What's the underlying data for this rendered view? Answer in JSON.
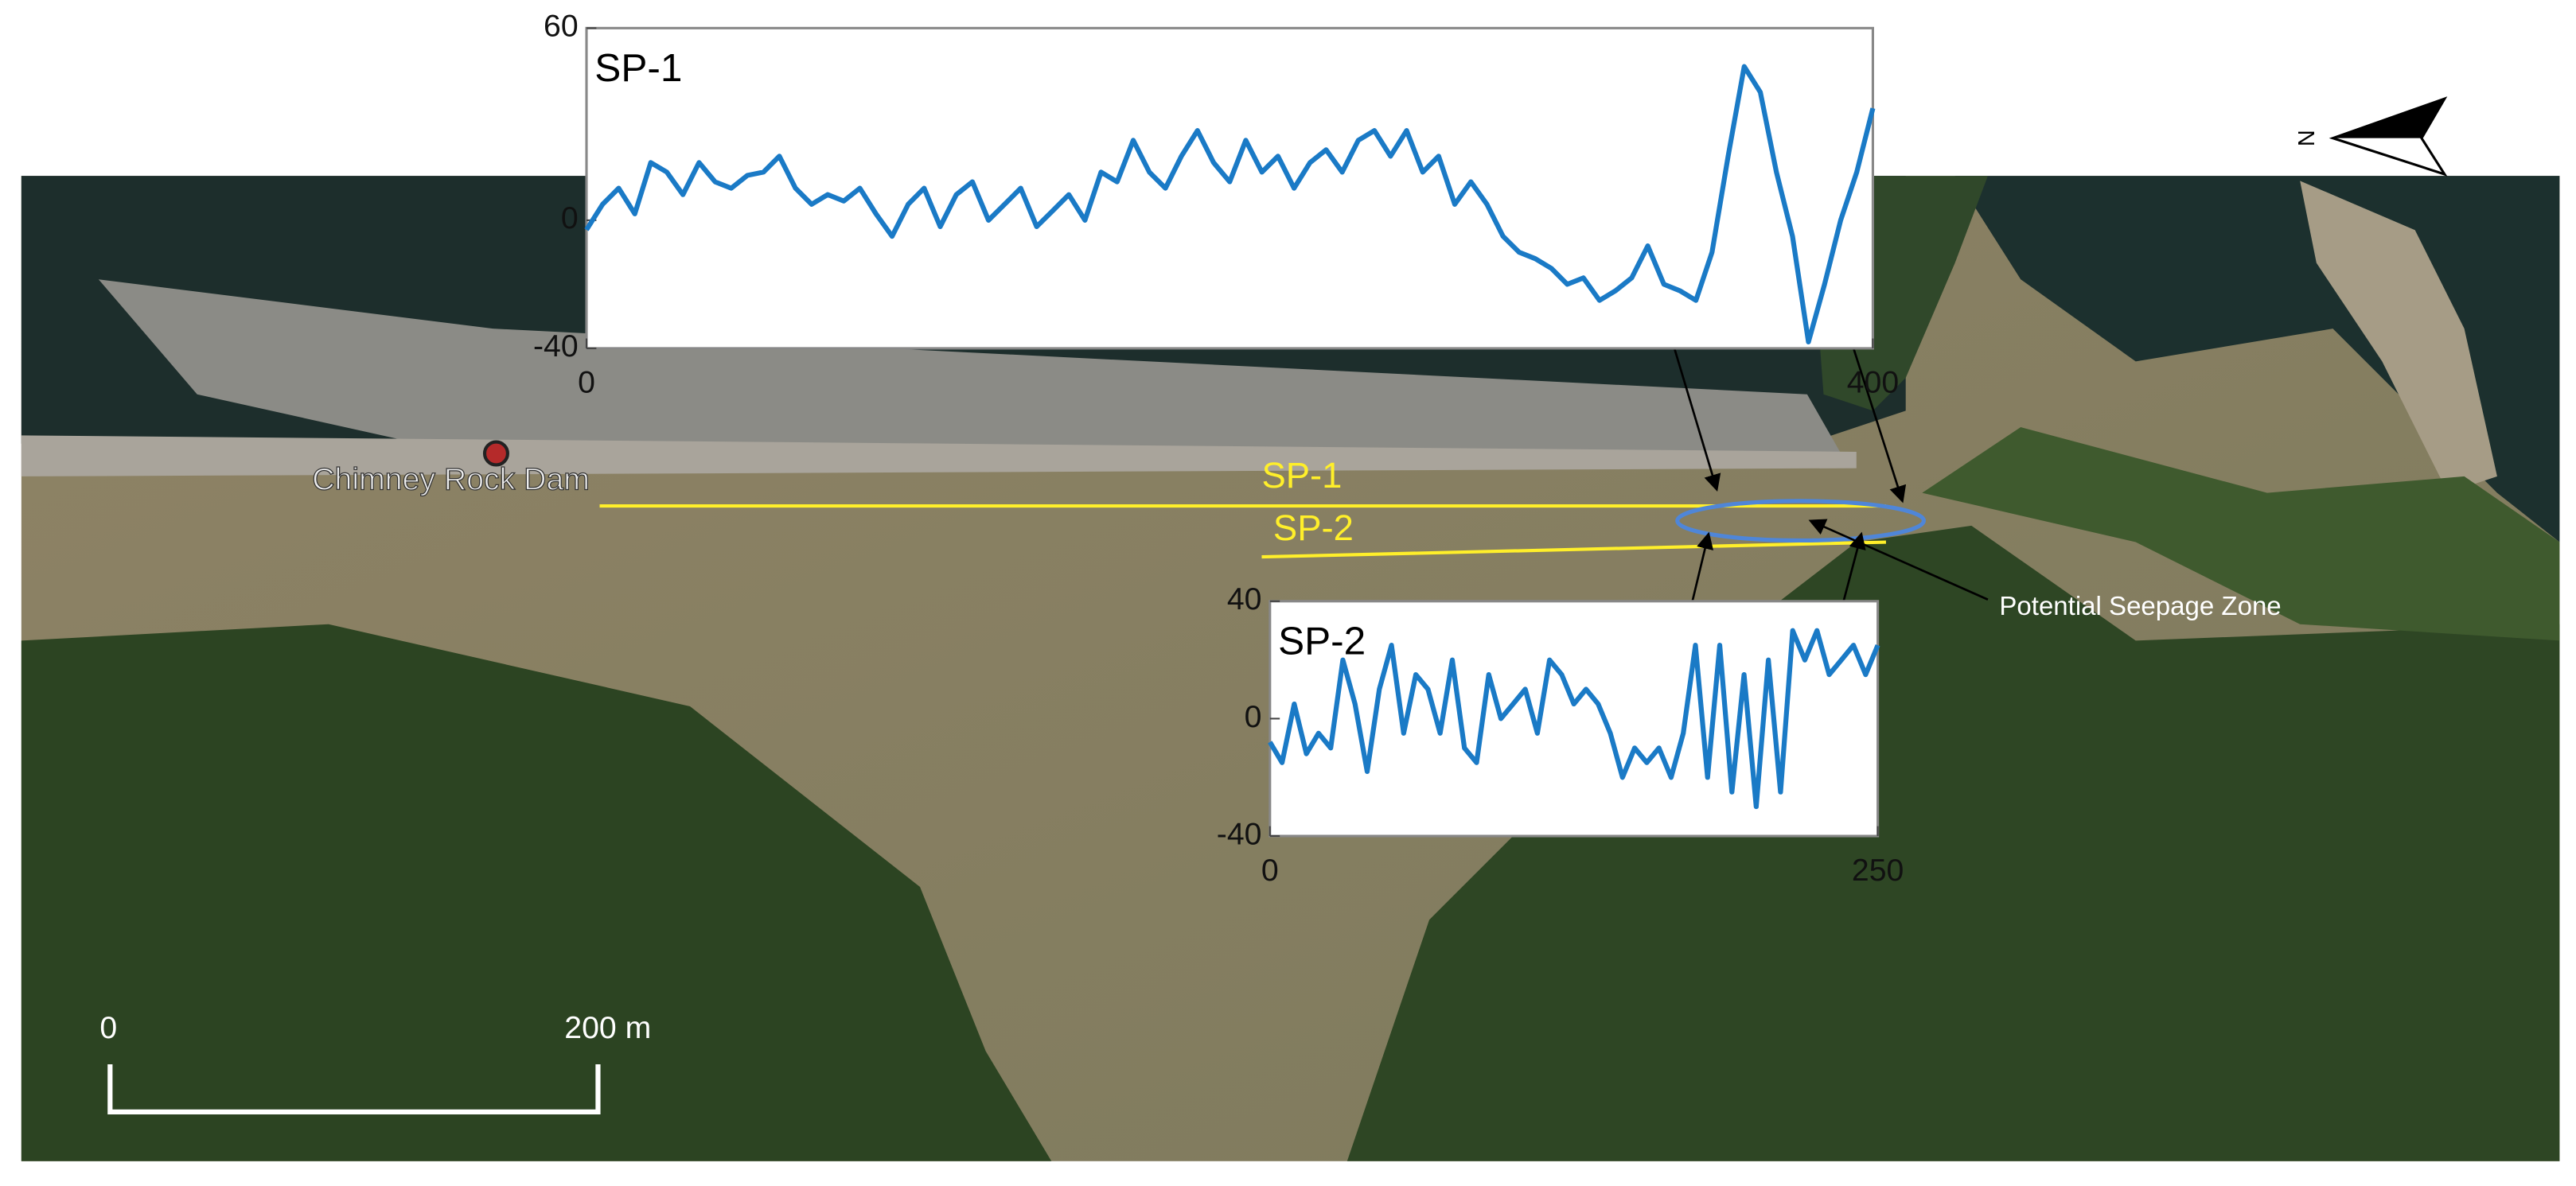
{
  "chart_data": [
    {
      "type": "line",
      "title": "SP-1",
      "color": "#1a7ac6",
      "x": [
        0,
        5,
        10,
        15,
        20,
        25,
        30,
        35,
        40,
        45,
        50,
        55,
        60,
        65,
        70,
        75,
        80,
        85,
        90,
        95,
        100,
        105,
        110,
        115,
        120,
        125,
        130,
        135,
        140,
        145,
        150,
        155,
        160,
        165,
        170,
        175,
        180,
        185,
        190,
        195,
        200,
        205,
        210,
        215,
        220,
        225,
        230,
        235,
        240,
        245,
        250,
        255,
        260,
        265,
        270,
        275,
        280,
        285,
        290,
        295,
        300,
        305,
        310,
        315,
        320,
        325,
        330,
        335,
        340,
        345,
        350,
        355,
        360,
        365,
        370,
        375,
        380,
        385,
        390,
        395,
        400
      ],
      "values": [
        -3,
        5,
        10,
        2,
        18,
        15,
        8,
        18,
        12,
        10,
        14,
        15,
        20,
        10,
        5,
        8,
        6,
        10,
        2,
        -5,
        5,
        10,
        -2,
        8,
        12,
        0,
        5,
        10,
        -2,
        3,
        8,
        0,
        15,
        12,
        25,
        15,
        10,
        20,
        28,
        18,
        12,
        25,
        15,
        20,
        10,
        18,
        22,
        15,
        25,
        28,
        20,
        28,
        15,
        20,
        5,
        12,
        5,
        -5,
        -10,
        -12,
        -15,
        -20,
        -18,
        -25,
        -22,
        -18,
        -8,
        -20,
        -22,
        -25,
        -10,
        20,
        48,
        40,
        15,
        -5,
        -38,
        -20,
        0,
        15,
        35
      ],
      "xlim": [
        0,
        400
      ],
      "ylim": [
        -40,
        60
      ],
      "xticks": [
        0,
        400
      ],
      "yticks": [
        -40,
        0,
        60
      ]
    },
    {
      "type": "line",
      "title": "SP-2",
      "color": "#1a7ac6",
      "x": [
        0,
        5,
        10,
        15,
        20,
        25,
        30,
        35,
        40,
        45,
        50,
        55,
        60,
        65,
        70,
        75,
        80,
        85,
        90,
        95,
        100,
        105,
        110,
        115,
        120,
        125,
        130,
        135,
        140,
        145,
        150,
        155,
        160,
        165,
        170,
        175,
        180,
        185,
        190,
        195,
        200,
        205,
        210,
        215,
        220,
        225,
        230,
        235,
        240,
        245,
        250
      ],
      "values": [
        -8,
        -15,
        5,
        -12,
        -5,
        -10,
        20,
        5,
        -18,
        10,
        25,
        -5,
        15,
        10,
        -5,
        20,
        -10,
        -15,
        15,
        0,
        5,
        10,
        -5,
        20,
        15,
        5,
        10,
        5,
        -5,
        -20,
        -10,
        -15,
        -10,
        -20,
        -5,
        25,
        -20,
        25,
        -25,
        15,
        -30,
        20,
        -25,
        30,
        20,
        30,
        15,
        20,
        25,
        15,
        25
      ],
      "xlim": [
        0,
        250
      ],
      "ylim": [
        -40,
        40
      ],
      "xticks": [
        0,
        250
      ],
      "yticks": [
        -40,
        0,
        40
      ]
    }
  ],
  "map": {
    "dam_label": "Chimney Rock Dam",
    "profile_labels": [
      "SP-1",
      "SP-2"
    ],
    "annotation": "Potential Seepage Zone",
    "scale_labels": [
      "0",
      "200 m"
    ],
    "north": "N"
  }
}
